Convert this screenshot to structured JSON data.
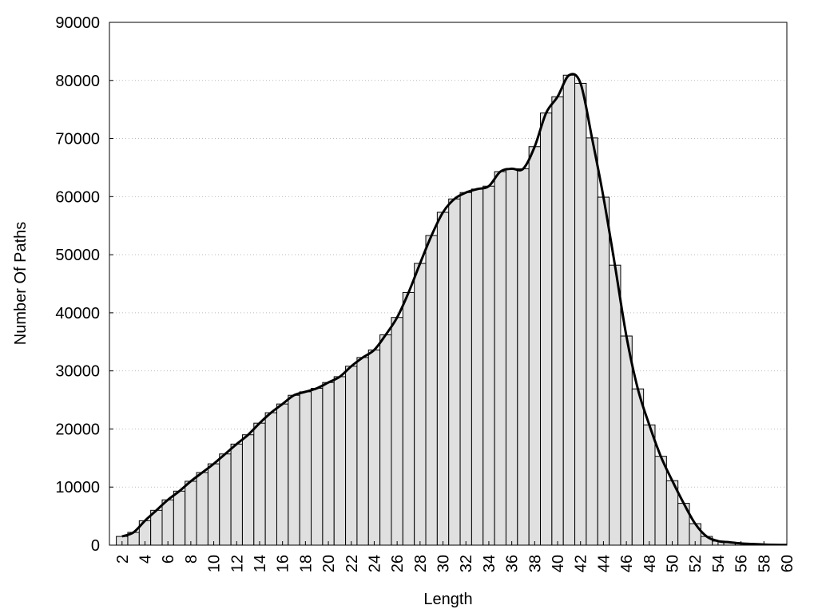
{
  "chart_data": {
    "type": "bar",
    "xlabel": "Length",
    "ylabel": "Number Of Paths",
    "x": [
      2,
      3,
      4,
      5,
      6,
      7,
      8,
      9,
      10,
      11,
      12,
      13,
      14,
      15,
      16,
      17,
      18,
      19,
      20,
      21,
      22,
      23,
      24,
      25,
      26,
      27,
      28,
      29,
      30,
      31,
      32,
      33,
      34,
      35,
      36,
      37,
      38,
      39,
      40,
      41,
      42,
      43,
      44,
      45,
      46,
      47,
      48,
      49,
      50,
      51,
      52,
      53,
      54,
      55,
      56,
      57,
      58,
      59,
      60
    ],
    "values": [
      1500,
      2200,
      4200,
      6000,
      7800,
      9300,
      11000,
      12500,
      14000,
      15700,
      17400,
      19000,
      21000,
      22800,
      24300,
      25800,
      26400,
      27000,
      28000,
      29000,
      30800,
      32300,
      33600,
      36200,
      39200,
      43500,
      48500,
      53300,
      57300,
      59600,
      60700,
      61300,
      61800,
      64300,
      64800,
      64800,
      68600,
      74400,
      77200,
      80900,
      79500,
      70100,
      59900,
      48200,
      36000,
      26900,
      20700,
      15300,
      11100,
      7200,
      3700,
      1500,
      700,
      500,
      300,
      200,
      100,
      50,
      30
    ],
    "color": "#e0e0e0",
    "curve": true,
    "grid": true,
    "xlim": [
      0.9,
      60
    ],
    "ylim": [
      0,
      90000
    ],
    "xticks": [
      2,
      4,
      6,
      8,
      10,
      12,
      14,
      16,
      18,
      20,
      22,
      24,
      26,
      28,
      30,
      32,
      34,
      36,
      38,
      40,
      42,
      44,
      46,
      48,
      50,
      52,
      54,
      56,
      58,
      60
    ],
    "yticks": [
      0,
      10000,
      20000,
      30000,
      40000,
      50000,
      60000,
      70000,
      80000,
      90000
    ]
  }
}
